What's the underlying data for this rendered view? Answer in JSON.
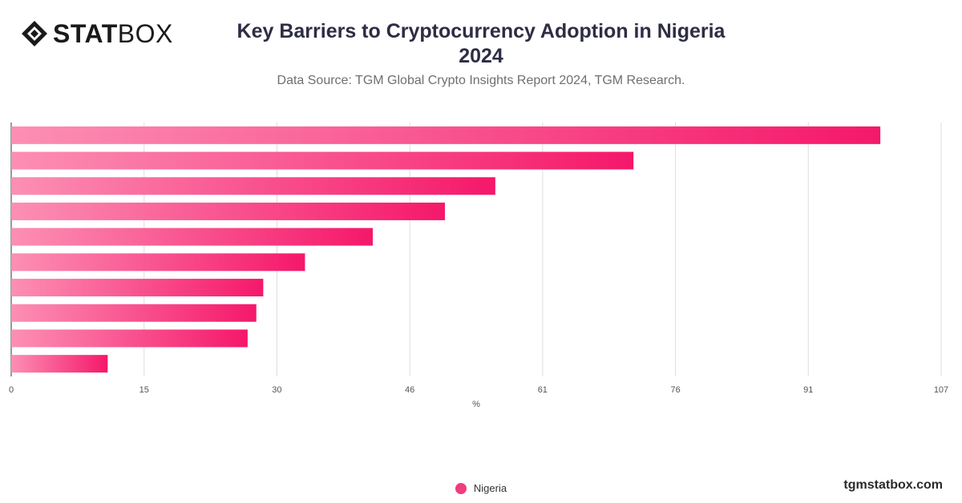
{
  "brand": {
    "logo_bold": "STAT",
    "logo_light": "BOX",
    "logo_icon": "diamond-logo-icon",
    "site": "tgmstatbox.com"
  },
  "colors": {
    "bar_start": "#fc8fb4",
    "bar_end": "#f5186a",
    "grid": "#dddddd",
    "legend_swatch": "#ef3d7f"
  },
  "chart_data": {
    "type": "bar",
    "orientation": "horizontal",
    "title": "Key Barriers to Cryptocurrency Adoption in Nigeria",
    "title_line2": "2024",
    "subtitle": "Data Source: TGM Global Crypto Insights Report 2024, TGM Research.",
    "xlabel": "%",
    "xlim": [
      0,
      107
    ],
    "x_ticks": [
      "0",
      "15",
      "30",
      "46",
      "61",
      "76",
      "91",
      "107"
    ],
    "x_tick_values": [
      0,
      15.29,
      30.57,
      45.86,
      61.14,
      76.43,
      91.71,
      107
    ],
    "categories": [
      "",
      "",
      "",
      "",
      "",
      "",
      "",
      "",
      "",
      ""
    ],
    "series": [
      {
        "name": "Nigeria",
        "values": [
          100,
          71.6,
          55.7,
          49.9,
          41.6,
          33.8,
          29.0,
          28.2,
          27.2,
          11.1
        ]
      }
    ],
    "grid": true,
    "legend_position": "bottom-center"
  }
}
